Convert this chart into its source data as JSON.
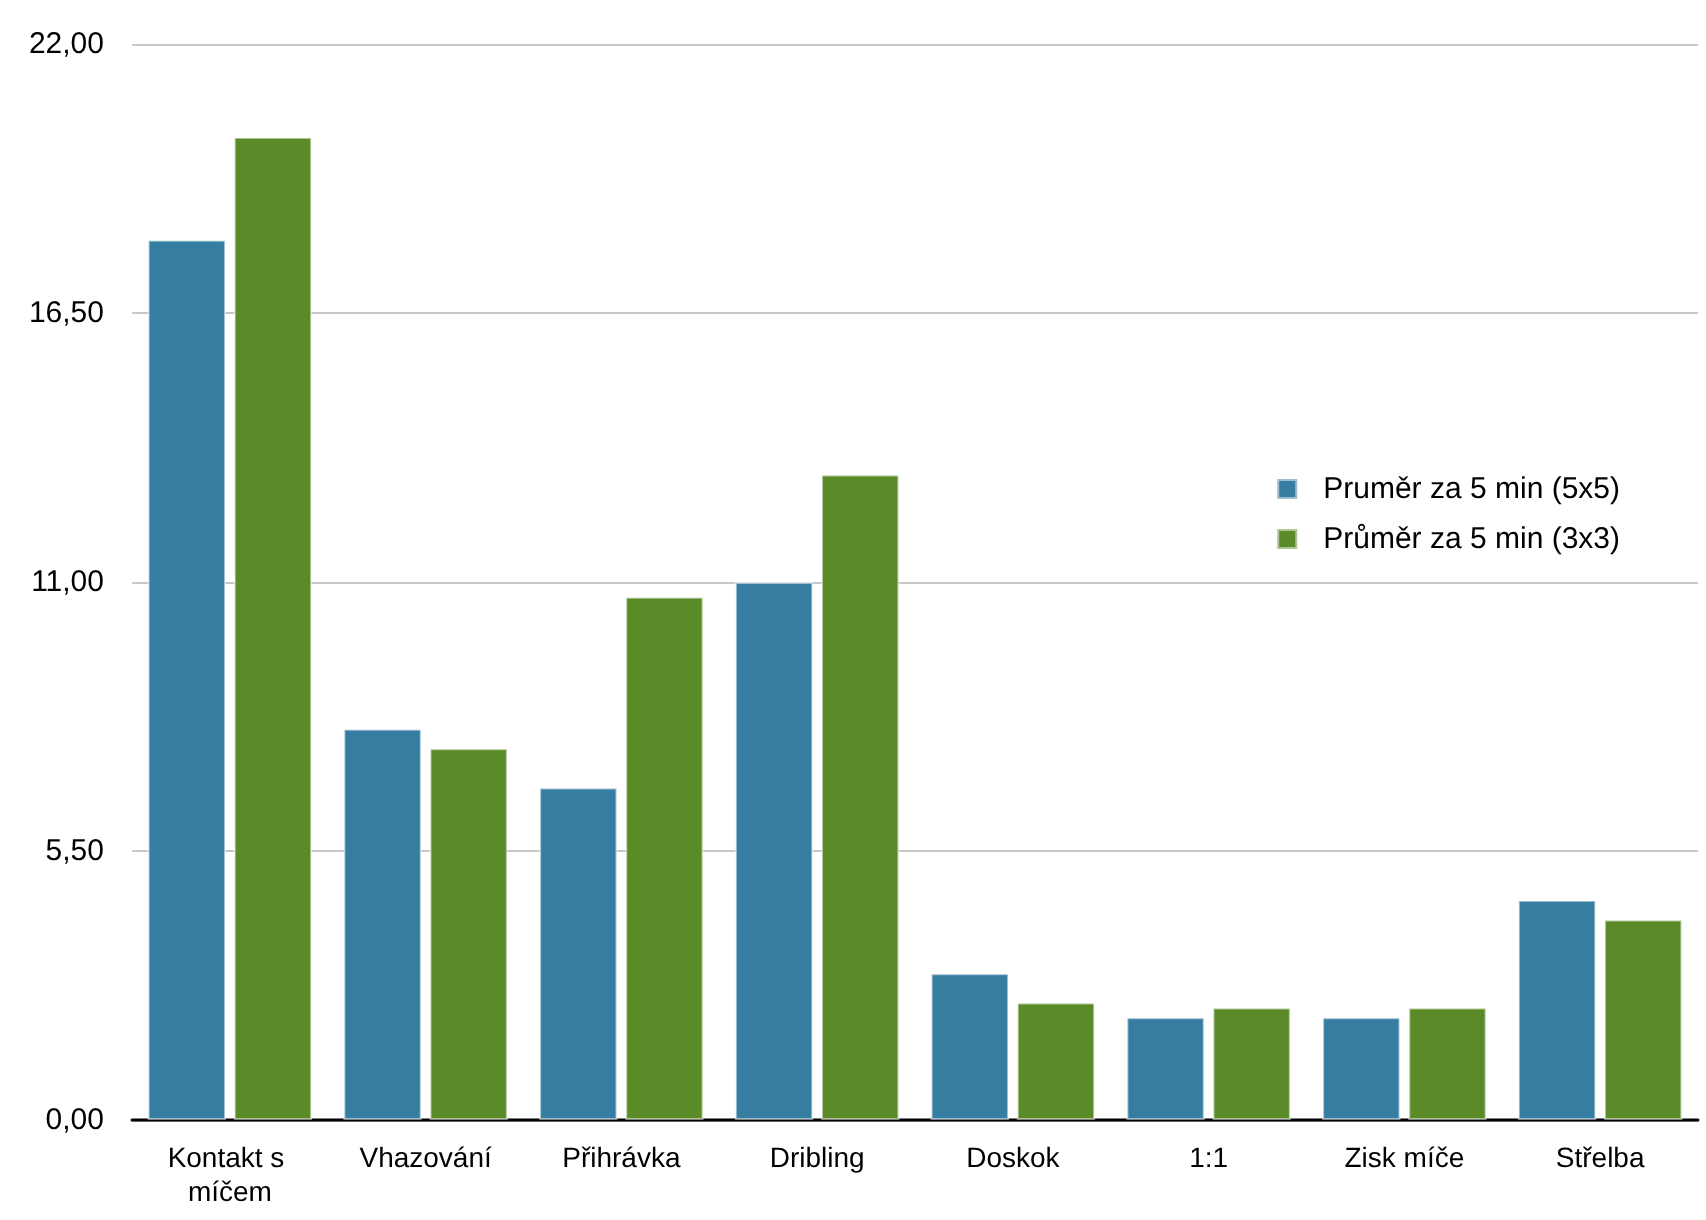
{
  "chart_data": {
    "type": "bar",
    "categories": [
      "Kontakt s míčem",
      "Vhazování",
      "Přihrávka",
      "Dribling",
      "Doskok",
      "1:1",
      "Zisk míče",
      "Střelba"
    ],
    "series": [
      {
        "name": "Pruměr za 5 min (5x5)",
        "color": "#367da2",
        "values": [
          18.0,
          8.0,
          6.8,
          11.0,
          3.0,
          2.1,
          2.1,
          4.5
        ]
      },
      {
        "name": "Průměr za 5 min (3x3)",
        "color": "#5b8a29",
        "values": [
          20.1,
          7.6,
          10.7,
          13.2,
          2.4,
          2.3,
          2.3,
          4.1
        ]
      }
    ],
    "ylim": [
      0,
      22
    ],
    "yticks": [
      {
        "value": 0,
        "label": "0,00"
      },
      {
        "value": 5.5,
        "label": "5,50"
      },
      {
        "value": 11,
        "label": "11,00"
      },
      {
        "value": 16.5,
        "label": "16,50"
      },
      {
        "value": 22,
        "label": "22,00"
      }
    ],
    "grid": "y",
    "legend": "right"
  }
}
